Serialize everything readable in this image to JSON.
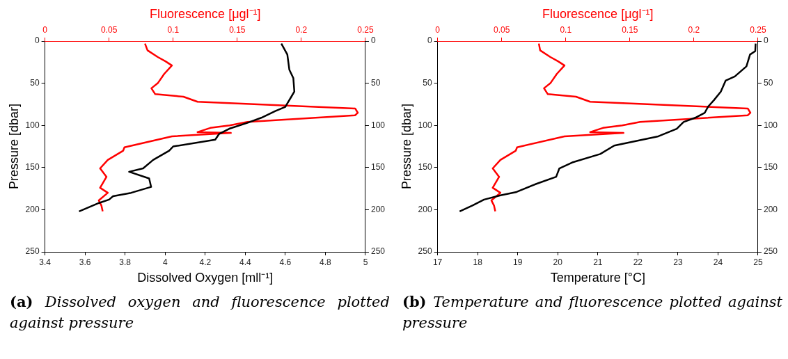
{
  "chart_data": [
    {
      "type": "line",
      "xlabel": "Dissolved Oxygen [mll⁻¹]",
      "x2label": "Fluorescence [μgl⁻¹]",
      "ylabel": "Pressure [dbar]",
      "xlim": [
        3.4,
        5
      ],
      "xticks": [
        3.4,
        3.6,
        3.8,
        4,
        4.2,
        4.4,
        4.6,
        4.8,
        5
      ],
      "x2lim": [
        0,
        0.25
      ],
      "x2ticks": [
        0,
        0.05,
        0.1,
        0.15,
        0.2,
        0.25
      ],
      "ylim": [
        250,
        0
      ],
      "yticks": [
        0,
        50,
        100,
        150,
        200,
        250
      ],
      "y2lim": [
        250,
        0
      ],
      "y2ticks": [
        0,
        50,
        100,
        150,
        200,
        250
      ],
      "marker": "none",
      "line_style": "solid",
      "annotations": [
        "(a) Dissolved oxygen and fluorescence plotted against pressure"
      ],
      "series": [
        {
          "color": "#000000",
          "x": [
            4.58,
            4.61,
            4.62,
            4.64,
            4.645,
            4.63,
            4.61,
            4.6,
            4.55,
            4.48,
            4.41,
            4.32,
            4.27,
            4.25,
            4.04,
            4.02,
            3.94,
            3.89,
            3.82,
            3.92,
            3.93,
            3.83,
            3.74,
            3.72,
            3.67,
            3.57
          ],
          "values": [
            3,
            16,
            34,
            44,
            60,
            66,
            74,
            78,
            83,
            91,
            97,
            104,
            110,
            117,
            125,
            130,
            141,
            151,
            155,
            163,
            173,
            180,
            184,
            188,
            192,
            202
          ]
        },
        {
          "color": "#ff0000",
          "axis": "x2",
          "x": [
            0.078,
            0.08,
            0.088,
            0.094,
            0.099,
            0.093,
            0.088,
            0.083,
            0.086,
            0.108,
            0.119,
            0.242,
            0.244,
            0.242,
            0.158,
            0.144,
            0.129,
            0.119,
            0.145,
            0.099,
            0.062,
            0.061,
            0.049,
            0.043,
            0.048,
            0.043,
            0.049,
            0.042,
            0.044,
            0.045
          ],
          "values": [
            3,
            11,
            19,
            24,
            29,
            39,
            50,
            56,
            63,
            66,
            72,
            80,
            85,
            88,
            96,
            100,
            103,
            108,
            109,
            113,
            126,
            130,
            141,
            151,
            161,
            174,
            180,
            189,
            195,
            202
          ]
        }
      ]
    },
    {
      "type": "line",
      "xlabel": "Temperature [°C]",
      "x2label": "Fluorescence [μgl⁻¹]",
      "ylabel": "Pressure [dbar]",
      "xlim": [
        17,
        25
      ],
      "xticks": [
        17,
        18,
        19,
        20,
        21,
        22,
        23,
        24,
        25
      ],
      "x2lim": [
        0,
        0.25
      ],
      "x2ticks": [
        0,
        0.05,
        0.1,
        0.15,
        0.2,
        0.25
      ],
      "ylim": [
        250,
        0
      ],
      "yticks": [
        0,
        50,
        100,
        150,
        200,
        250
      ],
      "y2lim": [
        250,
        0
      ],
      "y2ticks": [
        0,
        50,
        100,
        150,
        200,
        250
      ],
      "marker": "none",
      "line_style": "solid",
      "annotations": [
        "(b) Temperature and fluorescence plotted against pressure"
      ],
      "series": [
        {
          "color": "#000000",
          "x": [
            24.94,
            24.93,
            24.8,
            24.71,
            24.42,
            24.19,
            24.07,
            23.9,
            23.75,
            23.67,
            23.43,
            23.14,
            22.97,
            22.51,
            21.41,
            21.06,
            20.36,
            20.04,
            19.96,
            19.43,
            18.97,
            18.57,
            18.16,
            17.87,
            17.55
          ],
          "values": [
            3,
            12,
            16,
            30,
            42,
            47,
            60,
            70,
            78,
            85,
            91,
            96,
            104,
            113,
            124,
            134,
            144,
            151,
            161,
            170,
            179,
            183,
            188,
            195,
            202
          ]
        },
        {
          "color": "#ff0000",
          "axis": "x2",
          "x": [
            0.079,
            0.08,
            0.088,
            0.094,
            0.099,
            0.093,
            0.088,
            0.083,
            0.086,
            0.108,
            0.119,
            0.242,
            0.244,
            0.242,
            0.158,
            0.144,
            0.129,
            0.119,
            0.145,
            0.099,
            0.062,
            0.061,
            0.049,
            0.043,
            0.048,
            0.043,
            0.049,
            0.042,
            0.044,
            0.045
          ],
          "values": [
            3,
            11,
            19,
            24,
            29,
            39,
            50,
            56,
            63,
            66,
            72,
            80,
            85,
            88,
            96,
            100,
            103,
            108,
            109,
            113,
            126,
            130,
            141,
            151,
            161,
            174,
            180,
            189,
            195,
            202
          ]
        }
      ]
    }
  ]
}
